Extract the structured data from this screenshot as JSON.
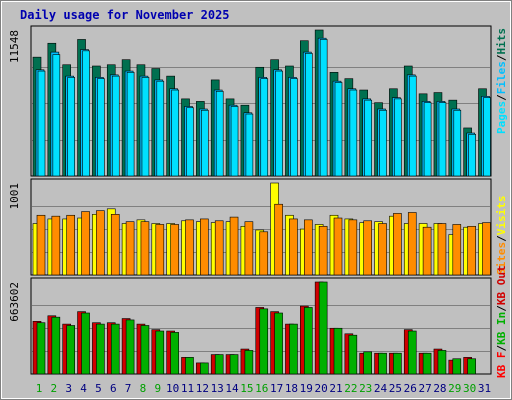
{
  "chart_data": {
    "type": "bar",
    "title": "Daily usage for November 2025",
    "categories": [
      "1",
      "2",
      "3",
      "4",
      "5",
      "6",
      "7",
      "8",
      "9",
      "10",
      "11",
      "12",
      "13",
      "14",
      "15",
      "16",
      "17",
      "18",
      "19",
      "20",
      "21",
      "22",
      "23",
      "24",
      "25",
      "26",
      "27",
      "28",
      "29",
      "30",
      "31"
    ],
    "weekend_days": [
      "1",
      "2",
      "8",
      "9",
      "15",
      "16",
      "22",
      "23",
      "29",
      "30"
    ],
    "panels": [
      {
        "name": "hits-files-pages",
        "max_label": "11548",
        "max": 11548,
        "right_label": [
          "Pages",
          "Files",
          "Hits"
        ],
        "series": [
          {
            "name": "Hits",
            "values": [
              9400,
              10500,
              8800,
              10800,
              8700,
              8800,
              9200,
              8800,
              8500,
              7900,
              6100,
              5900,
              7600,
              6100,
              5600,
              8600,
              9200,
              8700,
              10700,
              11548,
              8200,
              7700,
              6800,
              5800,
              6900,
              8700,
              6500,
              6600,
              6000,
              3800,
              6900
            ]
          },
          {
            "name": "Files",
            "values": [
              8400,
              9800,
              7900,
              10000,
              7800,
              8000,
              8300,
              7900,
              7600,
              6900,
              5500,
              5300,
              6800,
              5600,
              5000,
              7800,
              8400,
              7800,
              9800,
              10900,
              7500,
              6900,
              6100,
              5300,
              6200,
              8000,
              5900,
              5900,
              5300,
              3400,
              6300
            ]
          },
          {
            "name": "Pages",
            "values": [
              8300,
              9600,
              7800,
              9900,
              7700,
              7900,
              8200,
              7800,
              7500,
              6800,
              5400,
              5200,
              6700,
              5500,
              4900,
              7700,
              8300,
              7700,
              9700,
              10800,
              7400,
              6800,
              6000,
              5200,
              6100,
              7900,
              5800,
              5800,
              5200,
              3300,
              6200
            ]
          }
        ]
      },
      {
        "name": "visits-sites",
        "max_label": "1001",
        "max": 1001,
        "right_label": [
          "Sites",
          "Visits"
        ],
        "series": [
          {
            "name": "Visits",
            "values": [
              560,
              610,
              610,
              620,
              660,
              720,
              560,
              600,
              560,
              560,
              590,
              580,
              570,
              580,
              530,
              490,
              1001,
              650,
              500,
              550,
              650,
              610,
              570,
              580,
              640,
              560,
              560,
              560,
              440,
              520,
              560
            ]
          },
          {
            "name": "Sites",
            "values": [
              650,
              640,
              650,
              690,
              700,
              660,
              580,
              580,
              550,
              550,
              600,
              610,
              590,
              630,
              580,
              470,
              770,
              610,
              600,
              530,
              620,
              600,
              590,
              560,
              670,
              680,
              520,
              560,
              550,
              530,
              570
            ]
          }
        ]
      },
      {
        "name": "kb",
        "max_label": "663602",
        "max": 663602,
        "right_label": [
          "KB F",
          "KB In",
          "KB Out"
        ],
        "series": [
          {
            "name": "KB F",
            "values": [
              0,
              0,
              0,
              0,
              0,
              0,
              0,
              0,
              0,
              0,
              0,
              0,
              0,
              0,
              0,
              0,
              0,
              0,
              0,
              0,
              0,
              0,
              0,
              0,
              0,
              0,
              0,
              0,
              0,
              0,
              0
            ]
          },
          {
            "name": "KB In",
            "values": [
              370000,
              410000,
              350000,
              440000,
              360000,
              360000,
              390000,
              350000,
              310000,
              300000,
              120000,
              80000,
              140000,
              140000,
              170000,
              470000,
              440000,
              360000,
              480000,
              663602,
              330000,
              280000,
              160000,
              150000,
              150000,
              310000,
              150000,
              170000,
              110000,
              110000,
              0
            ]
          },
          {
            "name": "KB Out",
            "values": [
              380000,
              420000,
              360000,
              450000,
              370000,
              370000,
              400000,
              360000,
              320000,
              310000,
              120000,
              80000,
              140000,
              140000,
              180000,
              480000,
              450000,
              360000,
              490000,
              663602,
              330000,
              290000,
              150000,
              150000,
              150000,
              320000,
              150000,
              180000,
              100000,
              120000,
              0
            ]
          }
        ]
      }
    ],
    "colors": {
      "Hits": "#007050",
      "Files": "#00bfff",
      "Pages": "#00e0ff",
      "Visits": "#ffff00",
      "Sites": "#ff8c00",
      "KB F": "#ff0000",
      "KB In": "#00b000",
      "KB Out": "#d00000",
      "title": "#0000b0",
      "panel_bg": "#c0c0c0",
      "outer_bg": "#c0c0c0",
      "weekday_label": "#000080",
      "weekend_label": "#00a000"
    }
  }
}
